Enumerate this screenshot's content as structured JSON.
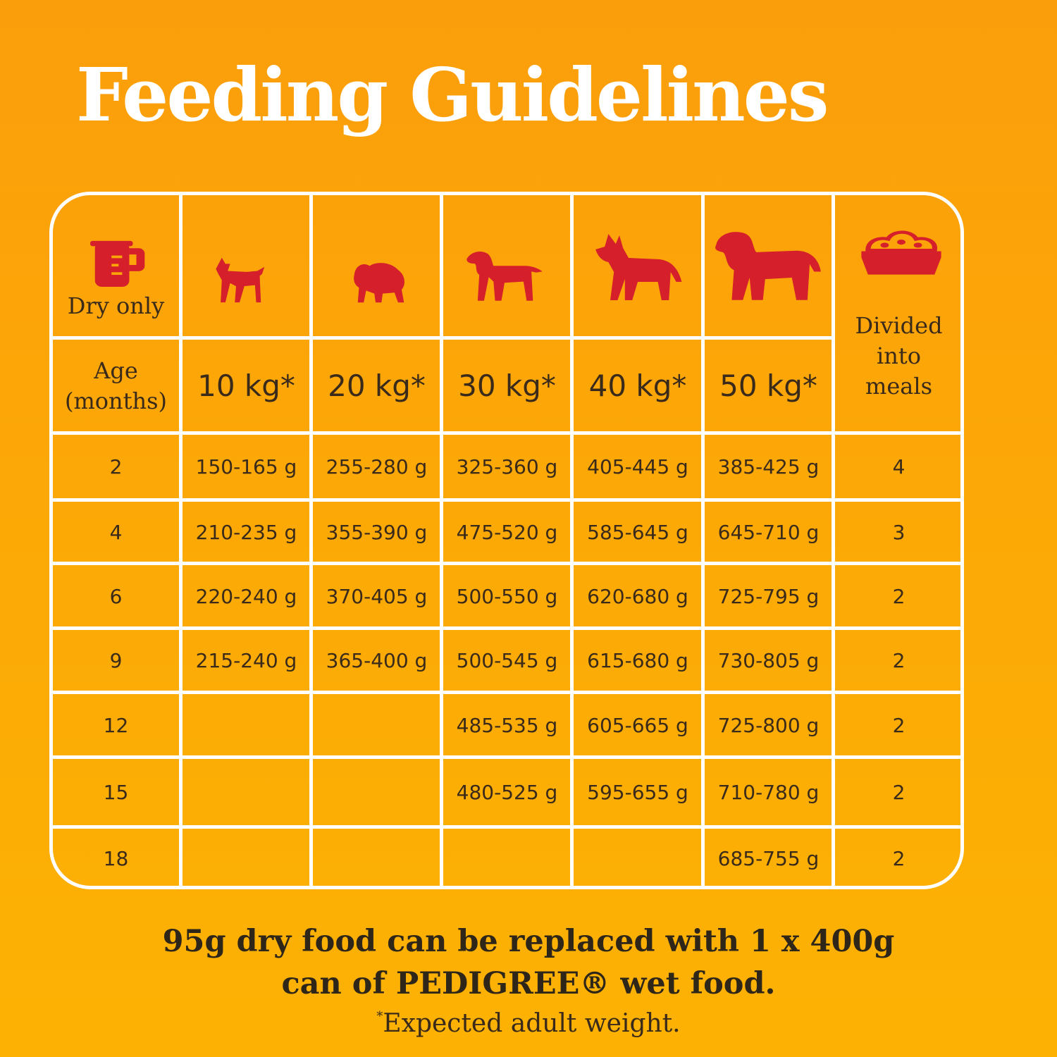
{
  "title": "Feeding Guidelines",
  "header": {
    "dry_only": "Dry only",
    "age_label": "Age (months)",
    "meals_label": "Divided into meals",
    "weights": [
      "10 kg*",
      "20 kg*",
      "30 kg*",
      "40 kg*",
      "50 kg*"
    ],
    "icons": [
      "measuring-jug-icon",
      "small-dog-icon",
      "medium-dog-icon",
      "setter-dog-icon",
      "shepherd-dog-icon",
      "large-dog-icon",
      "food-bowl-icon"
    ],
    "icon_color": "#d5202c"
  },
  "rows": [
    {
      "age": "2",
      "values": [
        "150-165 g",
        "255-280 g",
        "325-360 g",
        "405-445 g",
        "385-425 g"
      ],
      "meals": "4"
    },
    {
      "age": "4",
      "values": [
        "210-235 g",
        "355-390 g",
        "475-520 g",
        "585-645 g",
        "645-710 g"
      ],
      "meals": "3"
    },
    {
      "age": "6",
      "values": [
        "220-240 g",
        "370-405 g",
        "500-550 g",
        "620-680 g",
        "725-795 g"
      ],
      "meals": "2"
    },
    {
      "age": "9",
      "values": [
        "215-240 g",
        "365-400 g",
        "500-545 g",
        "615-680 g",
        "730-805 g"
      ],
      "meals": "2"
    },
    {
      "age": "12",
      "values": [
        "",
        "",
        "485-535 g",
        "605-665 g",
        "725-800 g"
      ],
      "meals": "2"
    },
    {
      "age": "15",
      "values": [
        "",
        "",
        "480-525 g",
        "595-655 g",
        "710-780 g"
      ],
      "meals": "2"
    },
    {
      "age": "18",
      "values": [
        "",
        "",
        "",
        "",
        "685-755 g"
      ],
      "meals": "2"
    }
  ],
  "footer": {
    "line1": "95g dry food can be replaced with 1 x 400g",
    "line2": "can of PEDIGREE® wet food.",
    "note_star": "*",
    "note": "Expected adult weight."
  },
  "colors": {
    "background": "#fca507",
    "grid": "#ffffff",
    "title": "#ffffff"
  }
}
